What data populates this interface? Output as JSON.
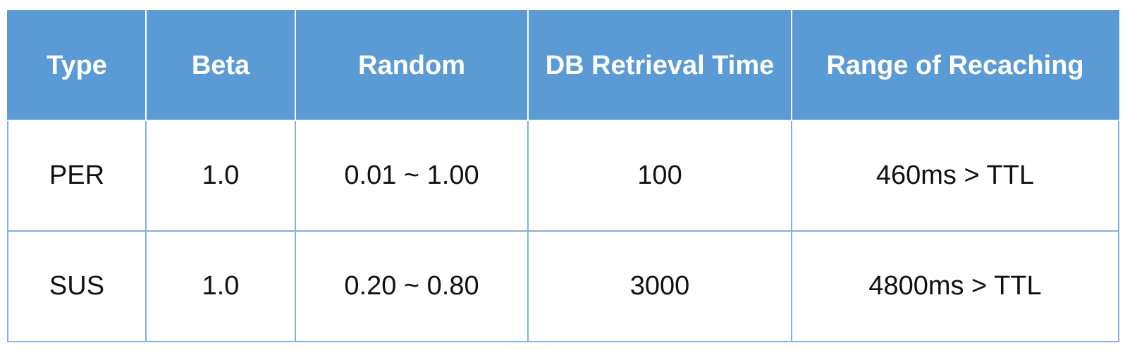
{
  "table": {
    "headers": [
      "Type",
      "Beta",
      "Random",
      "DB Retrieval Time",
      "Range of Recaching"
    ],
    "rows": [
      [
        "PER",
        "1.0",
        "0.01 ~ 1.00",
        "100",
        "460ms > TTL"
      ],
      [
        "SUS",
        "1.0",
        "0.20 ~ 0.80",
        "3000",
        "4800ms > TTL"
      ]
    ]
  },
  "colors": {
    "header_background": "#5b9bd5",
    "header_text": "#ffffff",
    "cell_border": "#7fb0de"
  }
}
